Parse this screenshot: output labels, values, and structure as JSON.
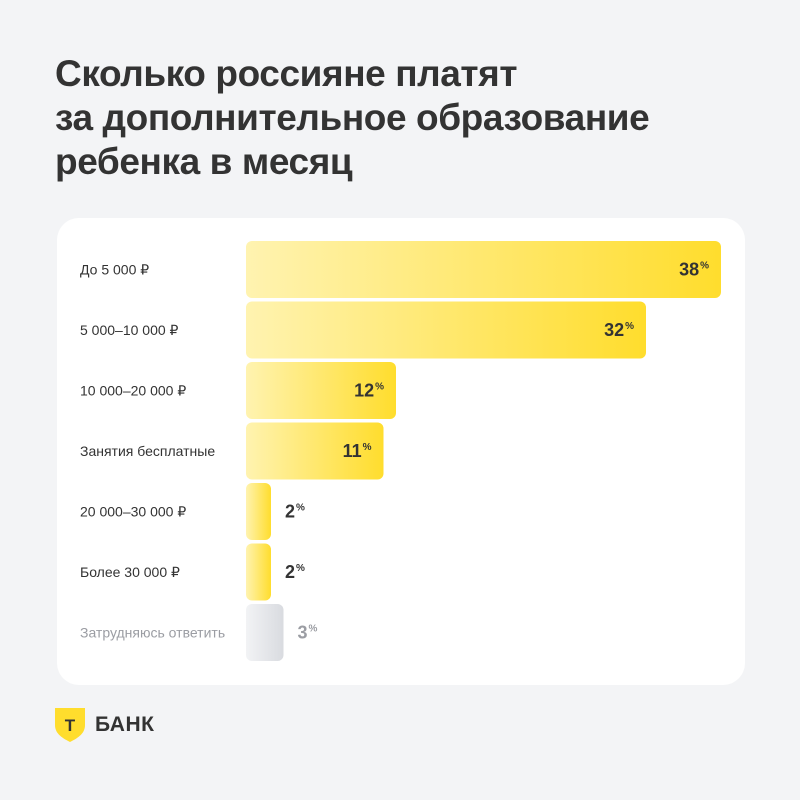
{
  "title_lines": [
    "Сколько россияне платят",
    "за дополнительное образование",
    "ребенка в месяц"
  ],
  "brand": {
    "name": "БАНК",
    "letter": "Т",
    "icon": "shield-logo-icon",
    "color": "#ffdd2d"
  },
  "colors": {
    "bar_start": "#fff3b0",
    "bar_end": "#ffdd2d",
    "muted_start": "#f2f3f5",
    "muted_end": "#d9dbe0",
    "text": "#333333",
    "muted_text": "#9b9da3"
  },
  "chart_data": {
    "type": "bar",
    "orientation": "horizontal",
    "unit": "%",
    "title": "Сколько россияне платят за дополнительное образование ребенка в месяц",
    "categories": [
      "До 5 000 ₽",
      "5 000–10 000 ₽",
      "10 000–20 000 ₽",
      "Занятия бесплатные",
      "20 000–30 000 ₽",
      "Более 30 000 ₽",
      "Затрудняюсь ответить"
    ],
    "values": [
      38,
      32,
      12,
      11,
      2,
      2,
      3
    ],
    "muted": [
      false,
      false,
      false,
      false,
      false,
      false,
      true
    ],
    "xlim": [
      0,
      38
    ],
    "grid": false,
    "legend": "none"
  }
}
